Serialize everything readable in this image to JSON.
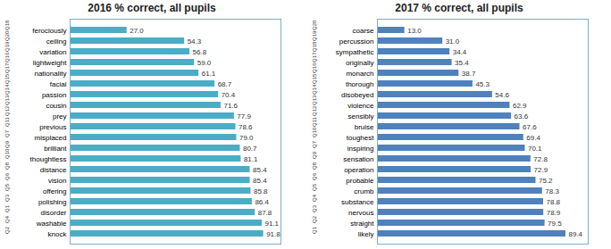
{
  "chart_data": [
    {
      "type": "bar",
      "orientation": "horizontal",
      "title": "2016 % correct, all pupils",
      "categories": [
        "ferociously",
        "ceiling",
        "variation",
        "lightweight",
        "nationality",
        "facial",
        "passion",
        "cousin",
        "prey",
        "previous",
        "misplaced",
        "brilliant",
        "thoughtless",
        "distance",
        "vision",
        "offering",
        "polishing",
        "disorder",
        "washable",
        "knock"
      ],
      "questions": [
        "Q18",
        "Q20",
        "Q19",
        "Q16",
        "Q17",
        "Q15",
        "Q14",
        "Q13",
        "Q12",
        "Q11",
        "Q7",
        "Q9",
        "Q10",
        "Q8",
        "Q6",
        "Q5",
        "Q3",
        "Q1",
        "Q4",
        "Q2"
      ],
      "values": [
        27.0,
        54.3,
        56.8,
        59.0,
        61.1,
        68.7,
        70.4,
        71.6,
        77.9,
        78.6,
        79.0,
        80.7,
        81.1,
        85.4,
        85.4,
        85.8,
        86.4,
        87.8,
        91.1,
        91.8
      ],
      "value_labels": [
        "27.0",
        "54.3",
        "56.8",
        "59.0",
        "61.1",
        "68.7",
        "70.4",
        "71.6",
        "77.9",
        "78.6",
        "79.0",
        "80.7",
        "81.1",
        "85.4",
        "85.4",
        "85.8",
        "86.4",
        "87.8",
        "91.1",
        "91.8"
      ],
      "color": "#4bacc6",
      "xlim": [
        0,
        100
      ],
      "xticks": [],
      "data_labels": true,
      "tick_labels": "y"
    },
    {
      "type": "bar",
      "orientation": "horizontal",
      "title": "2017 % correct, all pupils",
      "categories": [
        "coarse",
        "percussion",
        "sympathetic",
        "originally",
        "monarch",
        "thorough",
        "disobeyed",
        "violence",
        "sensibly",
        "bruise",
        "toughest",
        "inspiring",
        "sensation",
        "operation",
        "probable",
        "crumb",
        "substance",
        "nervous",
        "straight",
        "likely"
      ],
      "questions": [
        "Q20",
        "Q19",
        "Q18",
        "Q17",
        "Q16",
        "Q15",
        "Q14",
        "Q13",
        "Q12",
        "Q11",
        "Q10",
        "Q7",
        "Q9",
        "Q8",
        "Q6",
        "Q5",
        "Q4",
        "Q3",
        "Q2",
        "Q1"
      ],
      "values": [
        13.0,
        31.0,
        34.4,
        35.4,
        38.7,
        45.3,
        54.6,
        62.9,
        63.6,
        67.6,
        69.4,
        70.1,
        72.8,
        72.9,
        75.2,
        78.3,
        78.8,
        78.9,
        79.5,
        89.4
      ],
      "value_labels": [
        "13.0",
        "31.0",
        "34.4",
        "35.4",
        "38.7",
        "45.3",
        "54.6",
        "62.9",
        "63.6",
        "67.6",
        "69.4",
        "70.1",
        "72.8",
        "72.9",
        "75.2",
        "78.3",
        "78.8",
        "78.9",
        "79.5",
        "89.4"
      ],
      "color": "#4f81bd",
      "xlim": [
        0,
        100
      ],
      "xticks": [],
      "data_labels": true,
      "tick_labels": "y"
    }
  ]
}
